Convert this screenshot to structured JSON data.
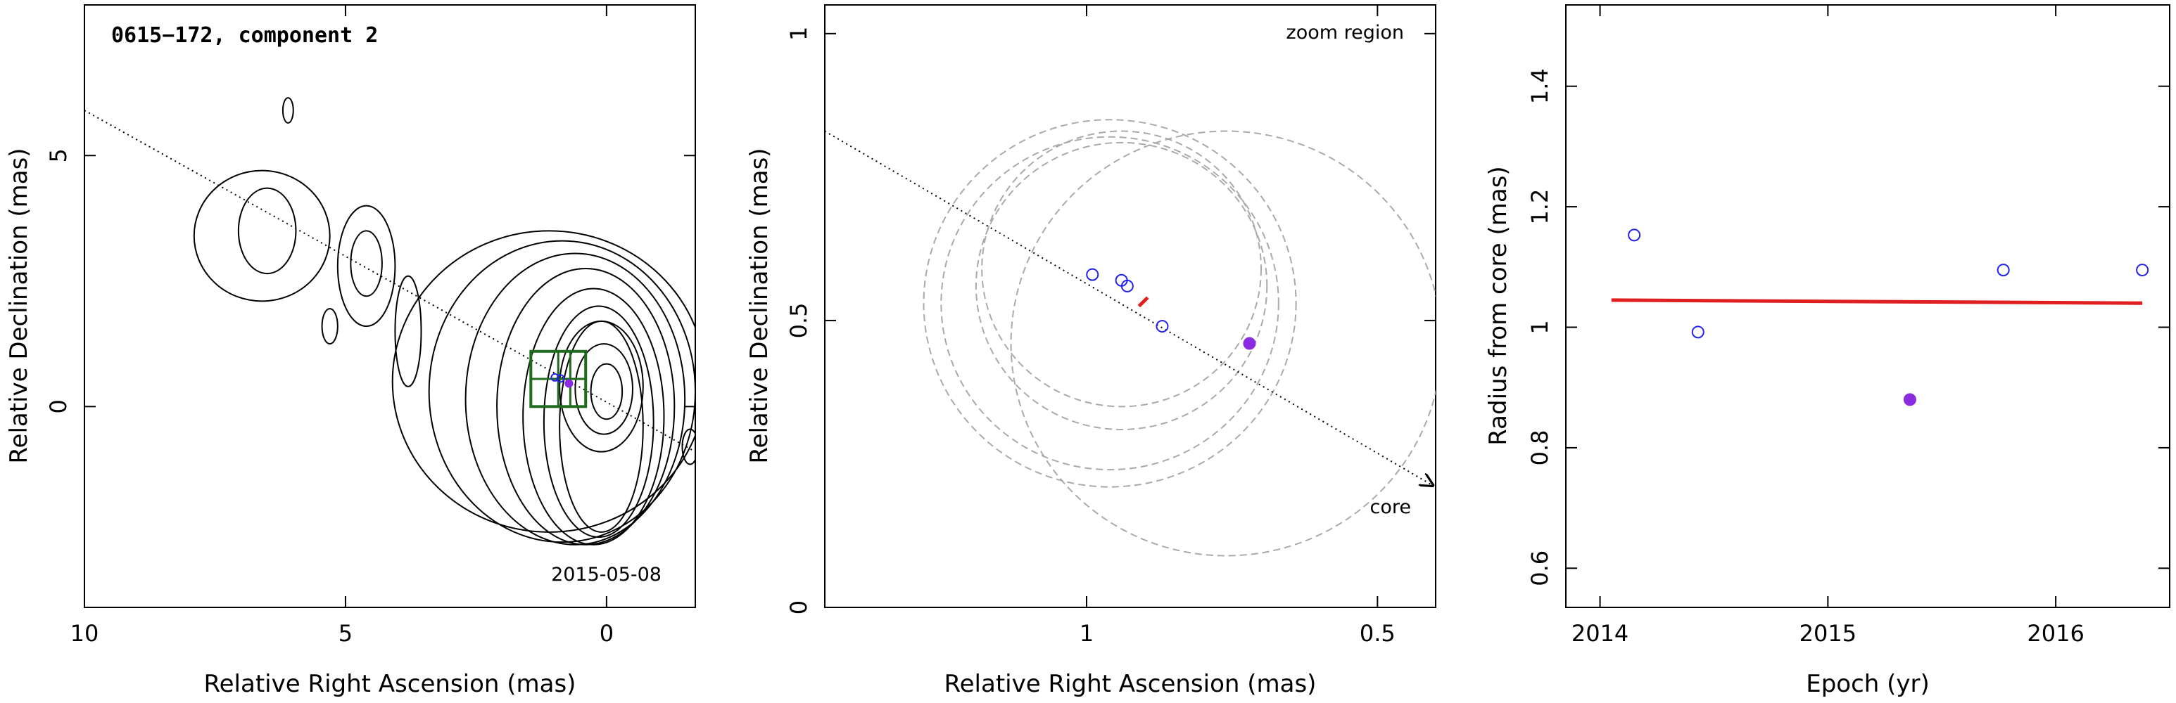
{
  "panels": {
    "map": {
      "title": "0615−172, component 2",
      "xlabel": "Relative Right Ascension (mas)",
      "ylabel": "Relative Declination (mas)",
      "date": "2015-05-08"
    },
    "zoom": {
      "xlabel": "Relative Right Ascension (mas)",
      "ylabel": "Relative Declination (mas)",
      "label_top": "zoom region",
      "label_core": "core"
    },
    "radius": {
      "xlabel": "Epoch (yr)",
      "ylabel": "Radius from core (mas)"
    }
  },
  "chart_data": [
    {
      "type": "scatter",
      "subtype": "radio contour map",
      "title": "0615−172, component 2",
      "xlabel": "Relative Right Ascension (mas)",
      "ylabel": "Relative Declination (mas)",
      "xlim": [
        10,
        -1.7
      ],
      "ylim": [
        -4,
        8
      ],
      "xticks": [
        10,
        5,
        0
      ],
      "yticks": [
        0,
        5
      ],
      "annotation": "2015-05-08",
      "jet_axis": {
        "x": [
          10,
          -1.7
        ],
        "y": [
          5.9,
          -0.9
        ]
      },
      "contours": [
        {
          "cx": 0.1,
          "cy": -0.4,
          "rx": 0.8,
          "ry": 2.1
        },
        {
          "cx": 0.15,
          "cy": -0.3,
          "rx": 1.05,
          "ry": 2.3
        },
        {
          "cx": 0.25,
          "cy": -0.2,
          "rx": 1.35,
          "ry": 2.55
        },
        {
          "cx": 0.4,
          "cy": 0.0,
          "rx": 1.7,
          "ry": 2.75
        },
        {
          "cx": 0.6,
          "cy": 0.15,
          "rx": 2.1,
          "ry": 2.9
        },
        {
          "cx": 0.85,
          "cy": 0.3,
          "rx": 2.55,
          "ry": 3.0
        },
        {
          "cx": 1.1,
          "cy": 0.5,
          "rx": 3.0,
          "ry": 3.0
        },
        {
          "cx": 0.0,
          "cy": 0.3,
          "rx": 0.3,
          "ry": 0.55
        },
        {
          "cx": 0.05,
          "cy": 0.35,
          "rx": 0.55,
          "ry": 0.9
        },
        {
          "cx": 0.1,
          "cy": 0.4,
          "rx": 0.8,
          "ry": 1.3
        },
        {
          "cx": 4.6,
          "cy": 2.8,
          "rx": 0.55,
          "ry": 1.2
        },
        {
          "cx": 4.6,
          "cy": 2.85,
          "rx": 0.3,
          "ry": 0.65
        },
        {
          "cx": 6.6,
          "cy": 3.4,
          "rx": 1.3,
          "ry": 1.3
        },
        {
          "cx": 6.5,
          "cy": 3.5,
          "rx": 0.55,
          "ry": 0.85
        },
        {
          "cx": 3.8,
          "cy": 1.5,
          "rx": 0.25,
          "ry": 1.1
        },
        {
          "cx": 5.3,
          "cy": 1.6,
          "rx": 0.15,
          "ry": 0.35
        },
        {
          "cx": 6.1,
          "cy": 5.9,
          "rx": 0.1,
          "ry": 0.25
        },
        {
          "cx": -1.6,
          "cy": -0.8,
          "rx": 0.15,
          "ry": 0.35
        }
      ],
      "zoom_box": {
        "x": [
          1.45,
          0.4
        ],
        "y": [
          0.0,
          1.1
        ]
      },
      "component_points": [
        {
          "x": 0.99,
          "y": 0.58,
          "marker": "open"
        },
        {
          "x": 0.88,
          "y": 0.56,
          "marker": "open"
        },
        {
          "x": 0.72,
          "y": 0.46,
          "marker": "filled"
        }
      ]
    },
    {
      "type": "scatter",
      "subtitle": "zoom region",
      "xlabel": "Relative Right Ascension (mas)",
      "ylabel": "Relative Declination (mas)",
      "xlim": [
        1.45,
        0.4
      ],
      "ylim": [
        0,
        1.05
      ],
      "xticks": [
        1,
        0.5
      ],
      "yticks": [
        0,
        0.5,
        1
      ],
      "annotation": "core",
      "series": [
        {
          "name": "",
          "marker": "open",
          "x": [
            0.99,
            0.93,
            0.94,
            0.87
          ],
          "y": [
            0.58,
            0.56,
            0.57,
            0.49
          ]
        },
        {
          "name": "",
          "marker": "filled",
          "x": [
            0.72
          ],
          "y": [
            0.46
          ]
        }
      ],
      "mean_position_marker": {
        "x": [
          0.91,
          0.895
        ],
        "y": [
          0.525,
          0.54
        ]
      },
      "jet_axis": {
        "x": [
          1.45,
          0.4
        ],
        "y": [
          0.83,
          0.21
        ]
      },
      "error_circles": [
        {
          "cx": 0.94,
          "cy": 0.59,
          "r": 0.24
        },
        {
          "cx": 0.94,
          "cy": 0.56,
          "r": 0.25
        },
        {
          "cx": 0.96,
          "cy": 0.53,
          "r": 0.29
        },
        {
          "cx": 0.96,
          "cy": 0.53,
          "r": 0.32
        },
        {
          "cx": 0.76,
          "cy": 0.46,
          "r": 0.37
        }
      ]
    },
    {
      "type": "scatter",
      "xlabel": "Epoch (yr)",
      "ylabel": "Radius from core (mas)",
      "xlim": [
        2013.85,
        2016.5
      ],
      "ylim": [
        0.535,
        1.535
      ],
      "xticks": [
        2014,
        2015,
        2016
      ],
      "yticks": [
        0.6,
        0.8,
        1,
        1.2,
        1.4
      ],
      "series": [
        {
          "name": "",
          "marker": "open",
          "x": [
            2014.15,
            2014.43,
            2015.77,
            2016.38
          ],
          "y": [
            1.153,
            0.992,
            1.095,
            1.095
          ]
        },
        {
          "name": "",
          "marker": "filled",
          "x": [
            2015.36
          ],
          "y": [
            0.88
          ]
        }
      ],
      "fit_line": {
        "x": [
          2014.05,
          2016.38
        ],
        "y": [
          1.045,
          1.04
        ]
      }
    }
  ],
  "colors": {
    "open_marker": "#2222ee",
    "filled_marker": "#8a2be2",
    "fit_line": "#e02020",
    "zoom_box": "#1e6b1e",
    "error_circle": "#aaaaaa",
    "axis": "#000000"
  }
}
